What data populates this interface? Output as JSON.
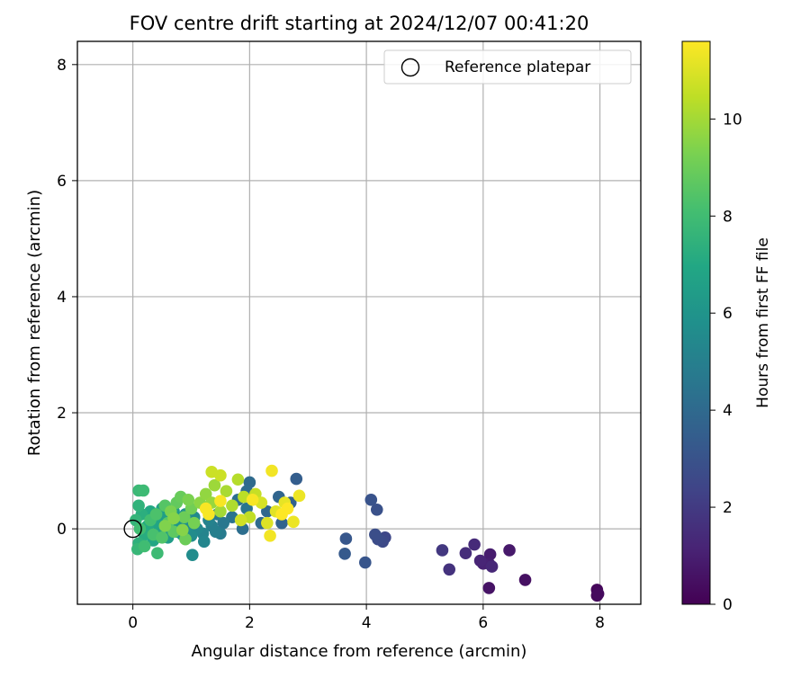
{
  "chart_data": {
    "type": "scatter",
    "title": "FOV centre drift starting at 2024/12/07 00:41:20",
    "xlabel": "Angular distance from reference (arcmin)",
    "ylabel": "Rotation from reference (arcmin)",
    "xlim": [
      -0.95,
      8.7
    ],
    "ylim": [
      -1.3,
      8.4
    ],
    "xticks": [
      0,
      2,
      4,
      6,
      8
    ],
    "yticks": [
      0,
      2,
      4,
      6,
      8
    ],
    "grid": true,
    "legend": {
      "position": "top-right",
      "entries": [
        "Reference platepar"
      ]
    },
    "reference_point": {
      "x": 0,
      "y": 0
    },
    "colorbar": {
      "label": "Hours from first FF file",
      "colormap": "viridis",
      "range": [
        0,
        11.6
      ],
      "ticks": [
        0,
        2,
        4,
        6,
        8,
        10
      ]
    },
    "points": [
      {
        "x": 7.95,
        "y": -1.05,
        "h": 0.2
      },
      {
        "x": 7.95,
        "y": -1.15,
        "h": 0.25
      },
      {
        "x": 7.97,
        "y": -1.12,
        "h": 0.3
      },
      {
        "x": 6.72,
        "y": -0.88,
        "h": 0.5
      },
      {
        "x": 6.1,
        "y": -1.02,
        "h": 0.6
      },
      {
        "x": 6.45,
        "y": -0.37,
        "h": 0.8
      },
      {
        "x": 6.12,
        "y": -0.44,
        "h": 0.9
      },
      {
        "x": 6.1,
        "y": -0.6,
        "h": 1.0
      },
      {
        "x": 6.0,
        "y": -0.6,
        "h": 1.1
      },
      {
        "x": 5.95,
        "y": -0.55,
        "h": 1.2
      },
      {
        "x": 6.15,
        "y": -0.65,
        "h": 1.3
      },
      {
        "x": 5.85,
        "y": -0.27,
        "h": 1.4
      },
      {
        "x": 5.7,
        "y": -0.42,
        "h": 1.5
      },
      {
        "x": 5.42,
        "y": -0.7,
        "h": 1.7
      },
      {
        "x": 5.3,
        "y": -0.37,
        "h": 1.9
      },
      {
        "x": 4.32,
        "y": -0.15,
        "h": 2.5
      },
      {
        "x": 4.28,
        "y": -0.22,
        "h": 2.6
      },
      {
        "x": 4.2,
        "y": -0.18,
        "h": 2.7
      },
      {
        "x": 4.15,
        "y": -0.1,
        "h": 2.8
      },
      {
        "x": 4.18,
        "y": 0.33,
        "h": 2.9
      },
      {
        "x": 4.08,
        "y": 0.5,
        "h": 3.0
      },
      {
        "x": 3.98,
        "y": -0.58,
        "h": 3.1
      },
      {
        "x": 3.65,
        "y": -0.17,
        "h": 3.2
      },
      {
        "x": 3.63,
        "y": -0.43,
        "h": 3.3
      },
      {
        "x": 2.8,
        "y": 0.86,
        "h": 3.5
      },
      {
        "x": 2.7,
        "y": 0.45,
        "h": 3.6
      },
      {
        "x": 2.55,
        "y": 0.1,
        "h": 3.7
      },
      {
        "x": 2.5,
        "y": 0.55,
        "h": 3.8
      },
      {
        "x": 2.3,
        "y": 0.3,
        "h": 3.9
      },
      {
        "x": 2.2,
        "y": 0.1,
        "h": 4.0
      },
      {
        "x": 2.0,
        "y": 0.8,
        "h": 4.0
      },
      {
        "x": 1.95,
        "y": 0.65,
        "h": 4.1
      },
      {
        "x": 1.88,
        "y": 0.0,
        "h": 4.2
      },
      {
        "x": 1.8,
        "y": 0.5,
        "h": 4.3
      },
      {
        "x": 1.7,
        "y": 0.2,
        "h": 4.4
      },
      {
        "x": 1.95,
        "y": 0.35,
        "h": 4.5
      },
      {
        "x": 1.55,
        "y": 0.1,
        "h": 4.6
      },
      {
        "x": 1.45,
        "y": 0.25,
        "h": 4.7
      },
      {
        "x": 1.5,
        "y": -0.08,
        "h": 4.8
      },
      {
        "x": 1.42,
        "y": -0.05,
        "h": 5.0
      },
      {
        "x": 1.35,
        "y": 0.05,
        "h": 5.0
      },
      {
        "x": 1.3,
        "y": 0.15,
        "h": 5.1
      },
      {
        "x": 1.2,
        "y": -0.08,
        "h": 5.2
      },
      {
        "x": 1.22,
        "y": -0.22,
        "h": 5.3
      },
      {
        "x": 1.1,
        "y": 0.0,
        "h": 5.4
      },
      {
        "x": 1.05,
        "y": 0.2,
        "h": 5.5
      },
      {
        "x": 1.0,
        "y": -0.12,
        "h": 5.6
      },
      {
        "x": 1.02,
        "y": -0.45,
        "h": 5.6
      },
      {
        "x": 0.95,
        "y": 0.05,
        "h": 5.7
      },
      {
        "x": 0.9,
        "y": 0.25,
        "h": 5.8
      },
      {
        "x": 0.85,
        "y": -0.1,
        "h": 5.9
      },
      {
        "x": 0.8,
        "y": 0.12,
        "h": 6.0
      },
      {
        "x": 0.75,
        "y": -0.05,
        "h": 6.1
      },
      {
        "x": 0.7,
        "y": 0.3,
        "h": 6.2
      },
      {
        "x": 0.65,
        "y": 0.0,
        "h": 6.3
      },
      {
        "x": 0.6,
        "y": -0.15,
        "h": 6.4
      },
      {
        "x": 0.55,
        "y": 0.2,
        "h": 6.5
      },
      {
        "x": 0.5,
        "y": 0.35,
        "h": 6.6
      },
      {
        "x": 0.45,
        "y": -0.05,
        "h": 6.7
      },
      {
        "x": 0.4,
        "y": 0.1,
        "h": 6.8
      },
      {
        "x": 0.35,
        "y": -0.2,
        "h": 6.9
      },
      {
        "x": 0.3,
        "y": 0.3,
        "h": 7.0
      },
      {
        "x": 0.25,
        "y": 0.05,
        "h": 7.1
      },
      {
        "x": 0.2,
        "y": -0.1,
        "h": 7.2
      },
      {
        "x": 0.15,
        "y": 0.25,
        "h": 7.3
      },
      {
        "x": 0.1,
        "y": -0.25,
        "h": 7.4
      },
      {
        "x": 0.1,
        "y": 0.4,
        "h": 7.5
      },
      {
        "x": 0.05,
        "y": 0.15,
        "h": 7.6
      },
      {
        "x": 0.08,
        "y": -0.35,
        "h": 7.7
      },
      {
        "x": 0.1,
        "y": 0.66,
        "h": 7.8
      },
      {
        "x": 0.18,
        "y": 0.66,
        "h": 7.9
      },
      {
        "x": 0.42,
        "y": -0.42,
        "h": 7.9
      },
      {
        "x": 0.12,
        "y": 0.0,
        "h": 8.0
      },
      {
        "x": 0.2,
        "y": -0.3,
        "h": 8.0
      },
      {
        "x": 0.3,
        "y": 0.15,
        "h": 8.1
      },
      {
        "x": 0.35,
        "y": -0.1,
        "h": 8.2
      },
      {
        "x": 0.4,
        "y": 0.25,
        "h": 8.3
      },
      {
        "x": 0.5,
        "y": -0.15,
        "h": 8.4
      },
      {
        "x": 0.55,
        "y": 0.4,
        "h": 8.5
      },
      {
        "x": 0.6,
        "y": 0.1,
        "h": 8.6
      },
      {
        "x": 0.7,
        "y": -0.05,
        "h": 8.7
      },
      {
        "x": 0.75,
        "y": 0.45,
        "h": 8.8
      },
      {
        "x": 0.82,
        "y": 0.55,
        "h": 8.9
      },
      {
        "x": 0.88,
        "y": 0.2,
        "h": 9.0
      },
      {
        "x": 0.9,
        "y": -0.18,
        "h": 9.0
      },
      {
        "x": 1.0,
        "y": 0.35,
        "h": 9.1
      },
      {
        "x": 1.05,
        "y": 0.1,
        "h": 9.2
      },
      {
        "x": 0.95,
        "y": 0.5,
        "h": 9.3
      },
      {
        "x": 0.65,
        "y": 0.3,
        "h": 9.3
      },
      {
        "x": 0.55,
        "y": 0.05,
        "h": 9.4
      },
      {
        "x": 0.7,
        "y": 0.18,
        "h": 9.5
      },
      {
        "x": 0.85,
        "y": -0.02,
        "h": 9.5
      },
      {
        "x": 1.15,
        "y": 0.45,
        "h": 9.6
      },
      {
        "x": 1.25,
        "y": 0.6,
        "h": 9.7
      },
      {
        "x": 1.35,
        "y": 0.45,
        "h": 9.8
      },
      {
        "x": 1.4,
        "y": 0.75,
        "h": 9.9
      },
      {
        "x": 1.5,
        "y": 0.3,
        "h": 10.0
      },
      {
        "x": 1.6,
        "y": 0.65,
        "h": 10.1
      },
      {
        "x": 1.7,
        "y": 0.4,
        "h": 10.2
      },
      {
        "x": 1.8,
        "y": 0.85,
        "h": 10.3
      },
      {
        "x": 1.9,
        "y": 0.55,
        "h": 10.4
      },
      {
        "x": 2.0,
        "y": 0.2,
        "h": 10.5
      },
      {
        "x": 2.1,
        "y": 0.6,
        "h": 10.6
      },
      {
        "x": 1.35,
        "y": 0.98,
        "h": 10.7
      },
      {
        "x": 1.5,
        "y": 0.92,
        "h": 10.7
      },
      {
        "x": 1.85,
        "y": 0.15,
        "h": 10.8
      },
      {
        "x": 2.2,
        "y": 0.45,
        "h": 10.9
      },
      {
        "x": 2.3,
        "y": 0.1,
        "h": 11.0
      },
      {
        "x": 2.45,
        "y": 0.3,
        "h": 11.1
      },
      {
        "x": 2.6,
        "y": 0.45,
        "h": 11.2
      },
      {
        "x": 2.75,
        "y": 0.12,
        "h": 11.3
      },
      {
        "x": 2.85,
        "y": 0.57,
        "h": 11.3
      },
      {
        "x": 2.38,
        "y": 1.0,
        "h": 11.4
      },
      {
        "x": 2.35,
        "y": -0.12,
        "h": 11.4
      },
      {
        "x": 1.25,
        "y": 0.35,
        "h": 11.5
      },
      {
        "x": 1.3,
        "y": 0.25,
        "h": 11.5
      },
      {
        "x": 1.5,
        "y": 0.48,
        "h": 11.5
      },
      {
        "x": 2.05,
        "y": 0.5,
        "h": 11.5
      },
      {
        "x": 2.55,
        "y": 0.25,
        "h": 11.6
      },
      {
        "x": 2.65,
        "y": 0.35,
        "h": 11.6
      }
    ]
  }
}
